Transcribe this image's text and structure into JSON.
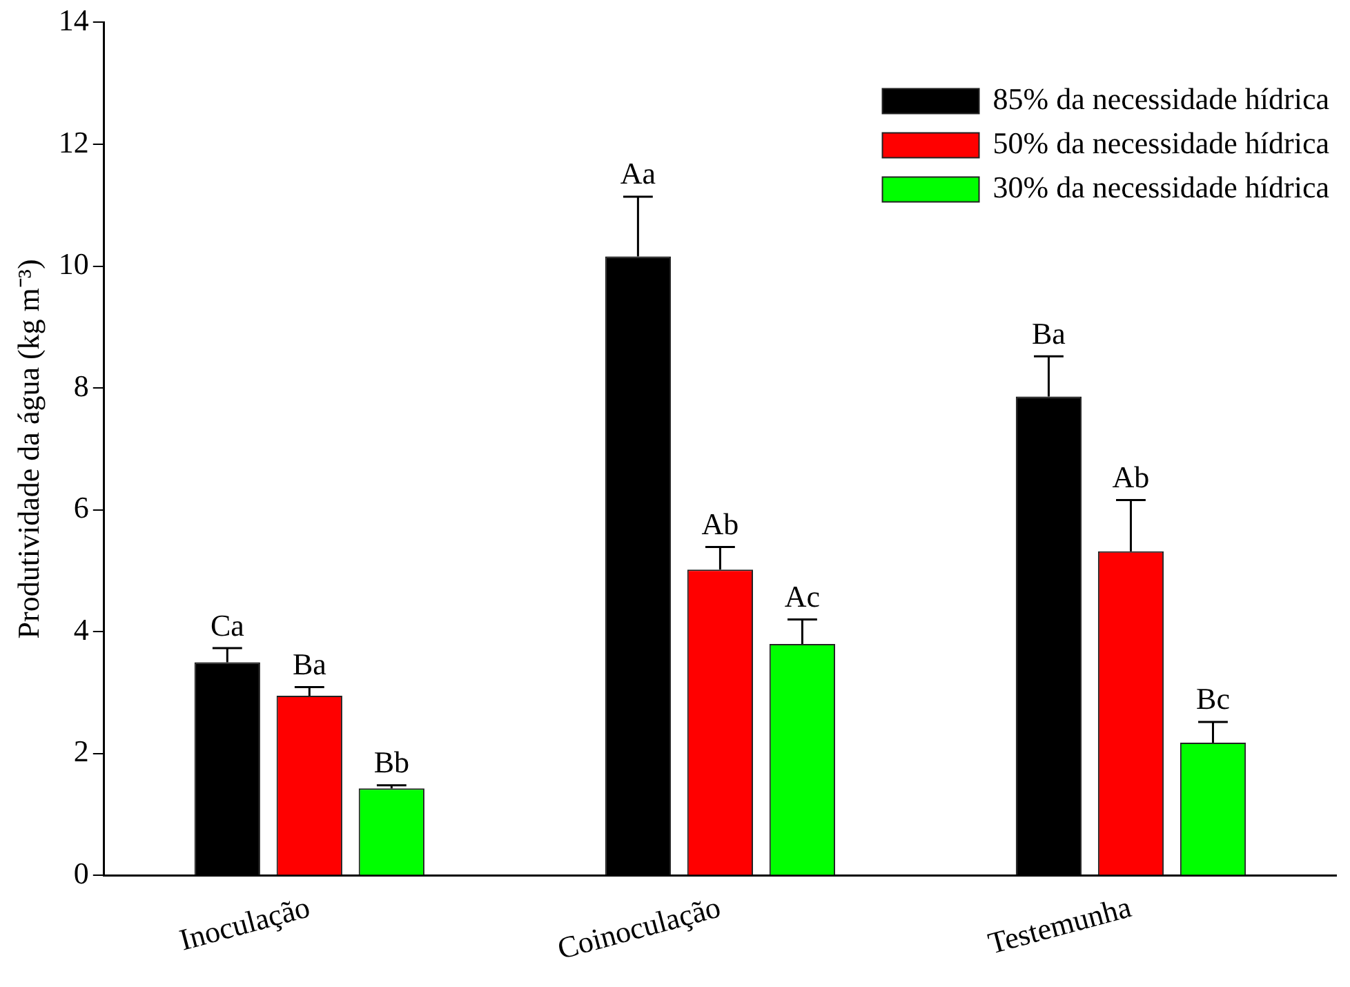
{
  "chart_data": {
    "type": "bar",
    "ylabel": "Produtividade da água (kg m⁻³)",
    "categories": [
      "Inoculação",
      "Coinoculação",
      "Testemunha"
    ],
    "series": [
      {
        "name": "85% da necessidade hídrica",
        "color": "#000000",
        "values": [
          3.5,
          10.16,
          7.86
        ],
        "errors": [
          [
            3.5,
            3.73
          ],
          [
            10.16,
            11.14
          ],
          [
            7.86,
            8.52
          ]
        ],
        "value_labels": [
          "Ca",
          "Aa",
          "Ba"
        ]
      },
      {
        "name": "50% da necessidade hídrica",
        "color": "#ff0000",
        "values": [
          2.95,
          5.02,
          5.32
        ],
        "errors": [
          [
            2.95,
            3.09
          ],
          [
            5.02,
            5.39
          ],
          [
            5.32,
            6.16
          ]
        ],
        "value_labels": [
          "Ba",
          "Ab",
          "Ab"
        ]
      },
      {
        "name": "30% da necessidade hídrica",
        "color": "#00ff00",
        "values": [
          1.43,
          3.8,
          2.18
        ],
        "errors": [
          [
            1.43,
            1.48
          ],
          [
            3.8,
            4.2
          ],
          [
            2.18,
            2.52
          ]
        ],
        "value_labels": [
          "Bb",
          "Ac",
          "Bc"
        ]
      }
    ],
    "ylim": [
      0,
      14
    ],
    "yticks": [
      0,
      2,
      4,
      6,
      8,
      10,
      12,
      14
    ],
    "grid": false,
    "legend": "top right"
  }
}
